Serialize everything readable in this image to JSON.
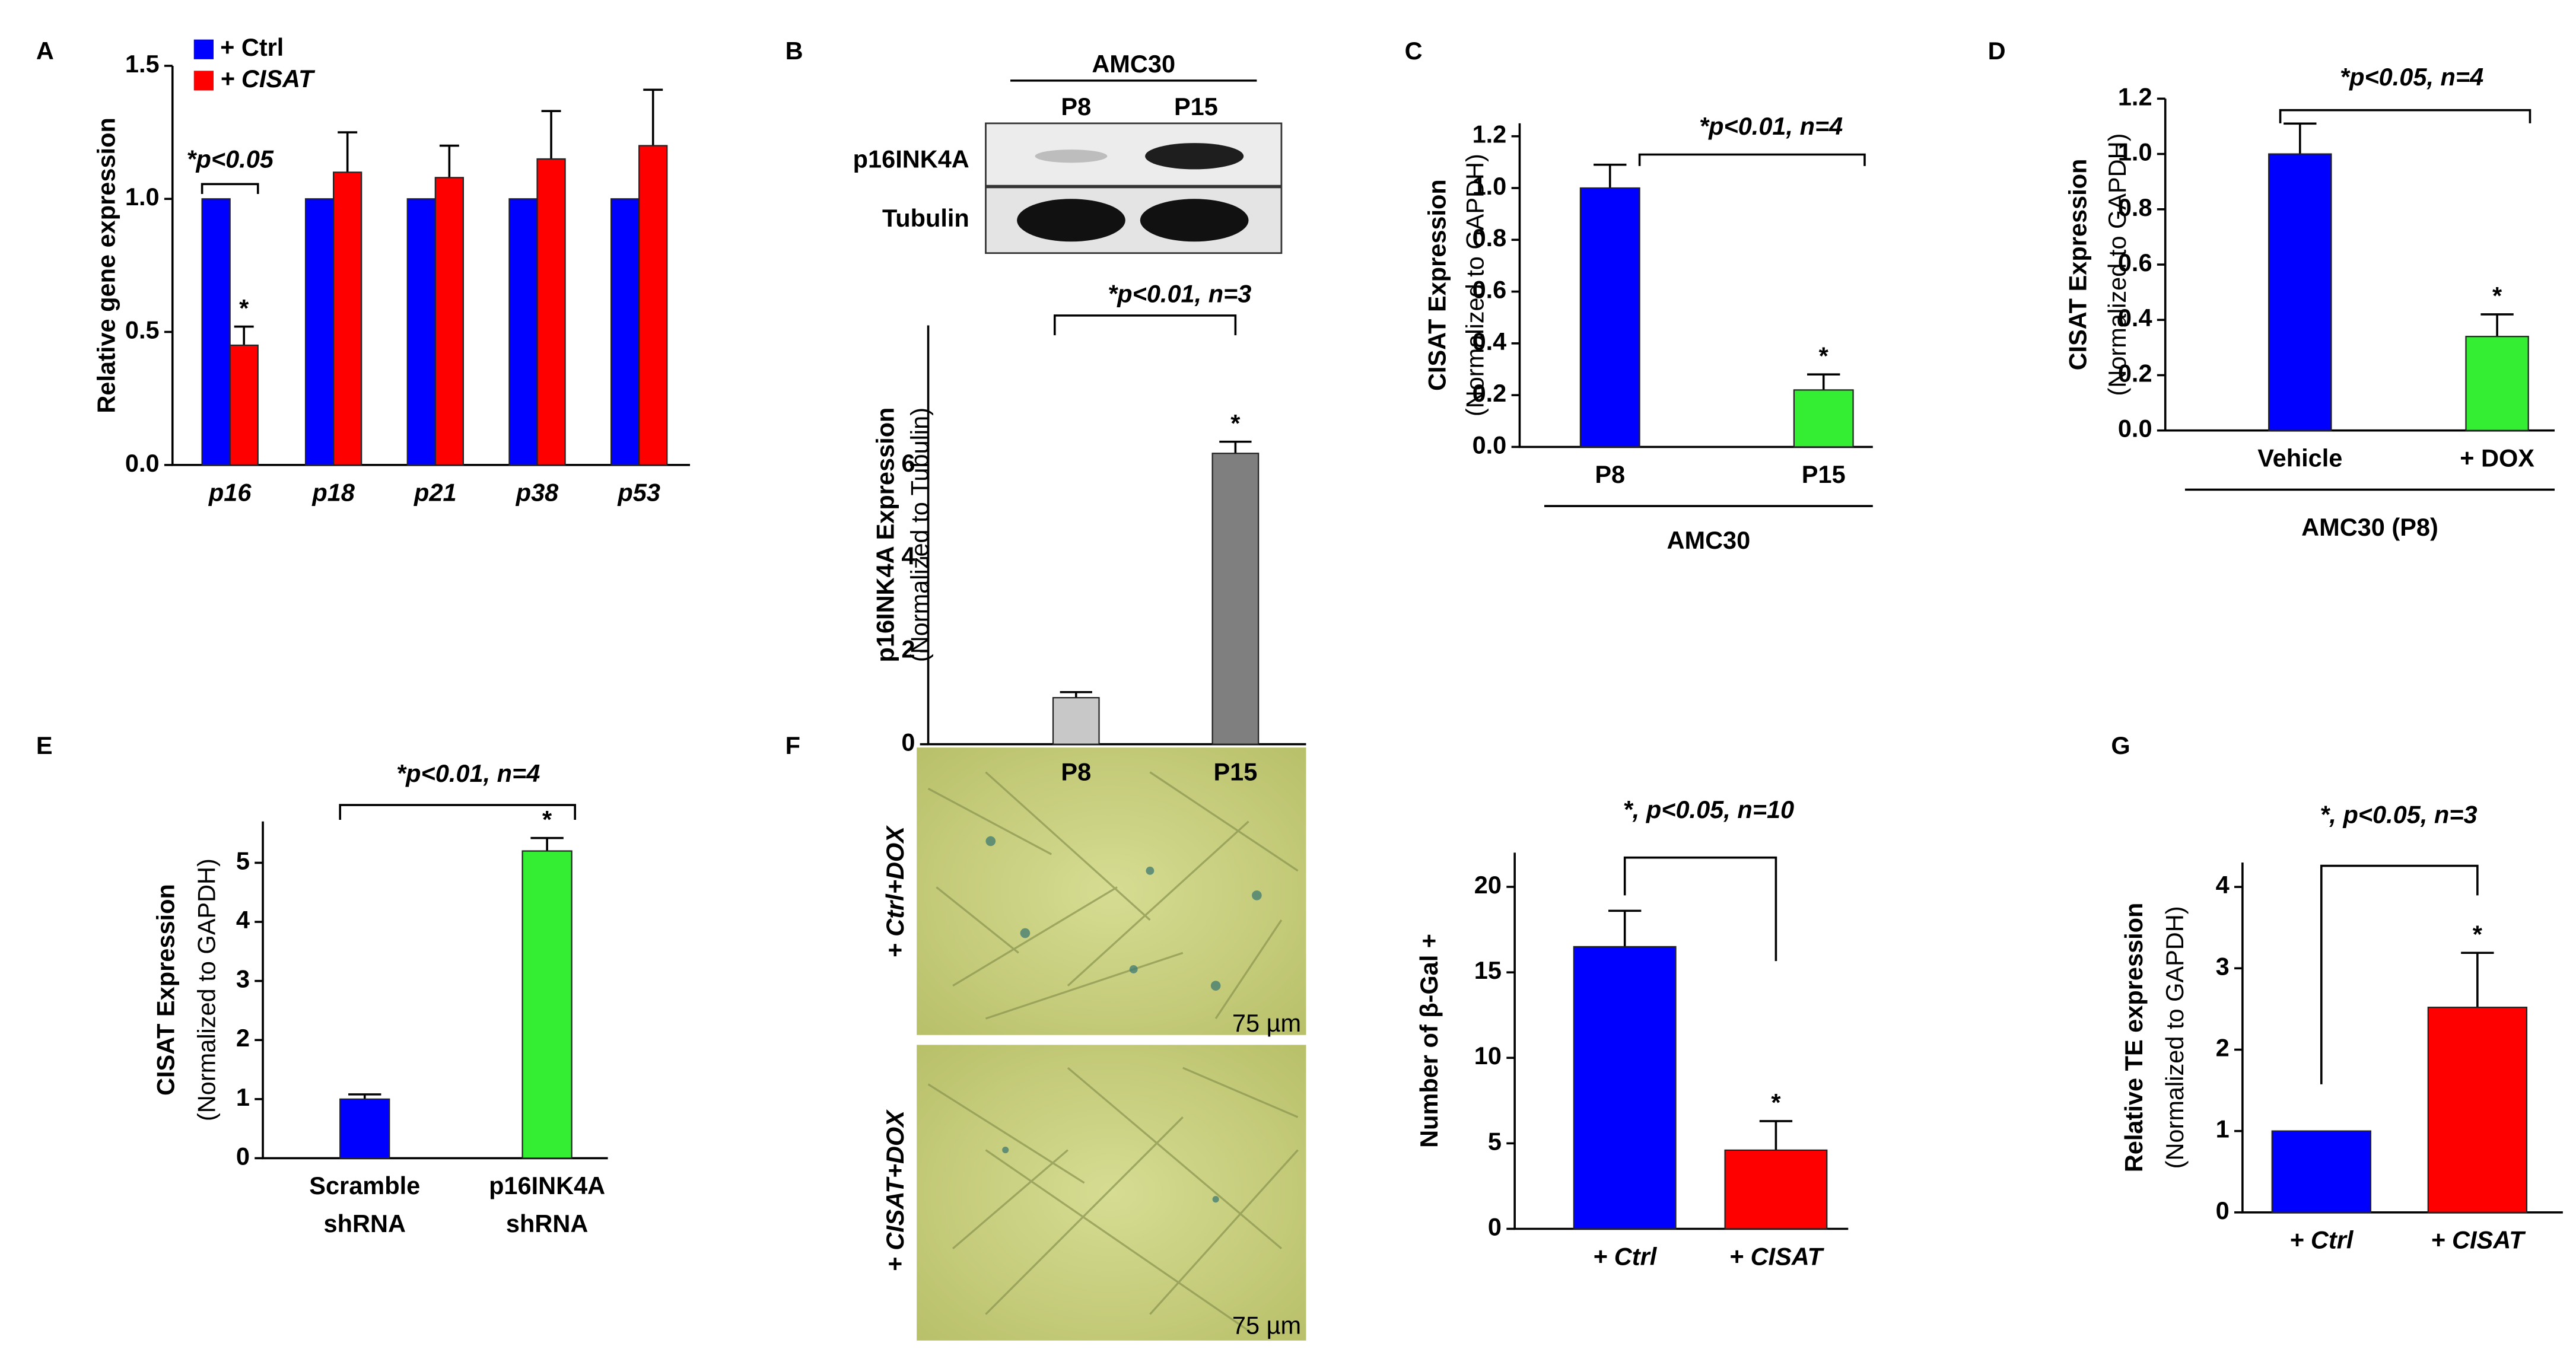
{
  "chart_data": [
    {
      "type": "bar",
      "panel": "A",
      "ylabel": [
        "Relative gene expression"
      ],
      "categories": [
        "p16",
        "p18",
        "p21",
        "p38",
        "p53"
      ],
      "series": [
        {
          "name": "+ Ctrl",
          "color": "#0000ff",
          "values": [
            1,
            1,
            1,
            1,
            1
          ]
        },
        {
          "name": "+ CISAT",
          "color": "#ff0000",
          "values": [
            0.45,
            1.1,
            1.08,
            1.15,
            1.2
          ],
          "errors": [
            0.07,
            0.15,
            0.12,
            0.18,
            0.21
          ],
          "stars": [
            "*",
            null,
            null,
            null,
            null
          ]
        }
      ],
      "ylim": [
        0,
        1.5
      ],
      "yticks": [
        {
          "value": 0,
          "label": "0.0"
        },
        0.5,
        {
          "value": 1,
          "label": "1.0"
        },
        1.5
      ],
      "annotation": "*p<0.05",
      "legend": "top-left"
    },
    {
      "type": "bar",
      "panel": "B",
      "ylabel": [
        "p16INK4A Expression",
        "(Normalized to Tubulin)"
      ],
      "categories": [
        "P8",
        "P15"
      ],
      "series": [
        {
          "colors": [
            "#c8c8c8",
            "#7f7f7f"
          ],
          "values": [
            1.0,
            6.25
          ],
          "errors": [
            0.12,
            0.25
          ],
          "stars": [
            null,
            "*"
          ]
        }
      ],
      "ylim": [
        0,
        9
      ],
      "yticks": [
        0,
        2,
        4,
        6
      ],
      "annotation": "*p<0.01, n=3"
    },
    {
      "type": "bar",
      "panel": "C",
      "ylabel": [
        "CISAT Expression",
        "(Normalized to GAPDH)"
      ],
      "categories": [
        "P8",
        "P15"
      ],
      "group_label": "AMC30",
      "series": [
        {
          "colors": [
            "#0000ff",
            "#33ee33"
          ],
          "values": [
            1.0,
            0.22
          ],
          "errors": [
            0.09,
            0.06
          ],
          "stars": [
            null,
            "*"
          ]
        }
      ],
      "ylim": [
        0,
        1.25
      ],
      "yticks": [
        {
          "value": 0,
          "label": "0.0"
        },
        0.2,
        0.4,
        0.6,
        0.8,
        {
          "value": 1,
          "label": "1.0"
        },
        1.2
      ],
      "annotation": "*p<0.01, n=4"
    },
    {
      "type": "bar",
      "panel": "D",
      "ylabel": [
        "CISAT Expression",
        "(Normalized to GAPDH)"
      ],
      "categories": [
        "Vehicle",
        "+ DOX"
      ],
      "group_label": "AMC30 (P8)",
      "series": [
        {
          "colors": [
            "#0000ff",
            "#33ee33"
          ],
          "values": [
            1.0,
            0.34
          ],
          "errors": [
            0.11,
            0.08
          ],
          "stars": [
            null,
            "*"
          ]
        }
      ],
      "ylim": [
        0,
        1.2
      ],
      "yticks": [
        {
          "value": 0,
          "label": "0.0"
        },
        0.2,
        0.4,
        0.6,
        0.8,
        {
          "value": 1,
          "label": "1.0"
        },
        1.2
      ],
      "annotation": "*p<0.05, n=4"
    },
    {
      "type": "bar",
      "panel": "E",
      "ylabel": [
        "CISAT Expression",
        "(Normalized to GAPDH)"
      ],
      "categories": [
        [
          "Scramble",
          "shRNA"
        ],
        [
          "p16INK4A",
          "shRNA"
        ]
      ],
      "series": [
        {
          "colors": [
            "#0000ff",
            "#33ee33"
          ],
          "values": [
            1.0,
            5.2
          ],
          "errors": [
            0.08,
            0.22
          ],
          "stars": [
            null,
            "*"
          ]
        }
      ],
      "ylim": [
        0,
        5.7
      ],
      "yticks": [
        0,
        1,
        2,
        3,
        4,
        5
      ],
      "annotation": "*p<0.01, n=4"
    },
    {
      "type": "bar",
      "panel": "F",
      "ylabel": [
        "Number of β-Gal +"
      ],
      "categories": [
        "+ Ctrl",
        "+ CISAT"
      ],
      "series": [
        {
          "colors": [
            "#0000ff",
            "#ff0000"
          ],
          "values": [
            16.5,
            4.6
          ],
          "errors": [
            2.1,
            1.7
          ],
          "stars": [
            null,
            "*"
          ]
        }
      ],
      "ylim": [
        0,
        22
      ],
      "yticks": [
        0,
        5,
        10,
        15,
        20
      ],
      "annotation": "*, p<0.05, n=10"
    },
    {
      "type": "bar",
      "panel": "G",
      "ylabel": [
        "Relative TE expression",
        "(Normalized to GAPDH)"
      ],
      "categories": [
        "+ Ctrl",
        "+ CISAT"
      ],
      "series": [
        {
          "colors": [
            "#0000ff",
            "#ff0000"
          ],
          "values": [
            1.0,
            2.52
          ],
          "errors": [
            null,
            0.67
          ],
          "stars": [
            null,
            "*"
          ]
        }
      ],
      "ylim": [
        0,
        4.3
      ],
      "yticks": [
        0,
        1,
        2,
        3,
        4
      ],
      "annotation": "*, p<0.05, n=3"
    }
  ],
  "blot": {
    "header": "AMC30",
    "lanes": [
      "P8",
      "P15"
    ],
    "rows": [
      "p16INK4A",
      "Tubulin"
    ]
  },
  "micrographs": {
    "rows": [
      "+ Ctrl+DOX",
      "+ CISAT+DOX"
    ],
    "scale": "75 µm"
  }
}
